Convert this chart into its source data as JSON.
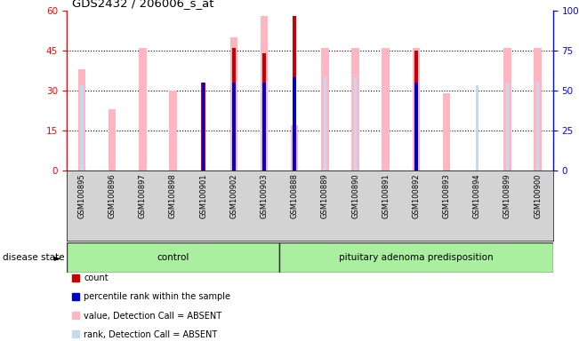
{
  "title": "GDS2432 / 206006_s_at",
  "samples": [
    "GSM100895",
    "GSM100896",
    "GSM100897",
    "GSM100898",
    "GSM100901",
    "GSM100902",
    "GSM100903",
    "GSM100888",
    "GSM100889",
    "GSM100890",
    "GSM100891",
    "GSM100892",
    "GSM100893",
    "GSM100894",
    "GSM100899",
    "GSM100900"
  ],
  "n_control": 7,
  "n_adenoma": 9,
  "count": [
    0,
    0,
    0,
    0,
    33,
    46,
    44,
    58,
    0,
    0,
    0,
    45,
    0,
    0,
    0,
    0
  ],
  "percentile": [
    0,
    0,
    0,
    0,
    33,
    33,
    33,
    35,
    0,
    0,
    0,
    33,
    0,
    0,
    0,
    0
  ],
  "value_absent": [
    38,
    23,
    46,
    30,
    0,
    50,
    58,
    17,
    46,
    46,
    46,
    46,
    29,
    0,
    46,
    46
  ],
  "rank_absent": [
    32,
    0,
    0,
    0,
    0,
    0,
    0,
    0,
    35,
    35,
    0,
    0,
    0,
    32,
    33,
    33
  ],
  "ylim_left": [
    0,
    60
  ],
  "yticks_left": [
    0,
    15,
    30,
    45,
    60
  ],
  "ylim_right": [
    0,
    100
  ],
  "yticks_right": [
    0,
    25,
    50,
    75,
    100
  ],
  "bar_color_count": "#CC0000",
  "bar_color_percentile": "#0000CC",
  "bar_color_value_absent": "#FFB6C1",
  "bar_color_rank_absent": "#C8D8F0",
  "legend_items": [
    {
      "label": "count",
      "color": "#CC0000"
    },
    {
      "label": "percentile rank within the sample",
      "color": "#0000CC"
    },
    {
      "label": "value, Detection Call = ABSENT",
      "color": "#FFB6C1"
    },
    {
      "label": "rank, Detection Call = ABSENT",
      "color": "#C8D8F0"
    }
  ]
}
